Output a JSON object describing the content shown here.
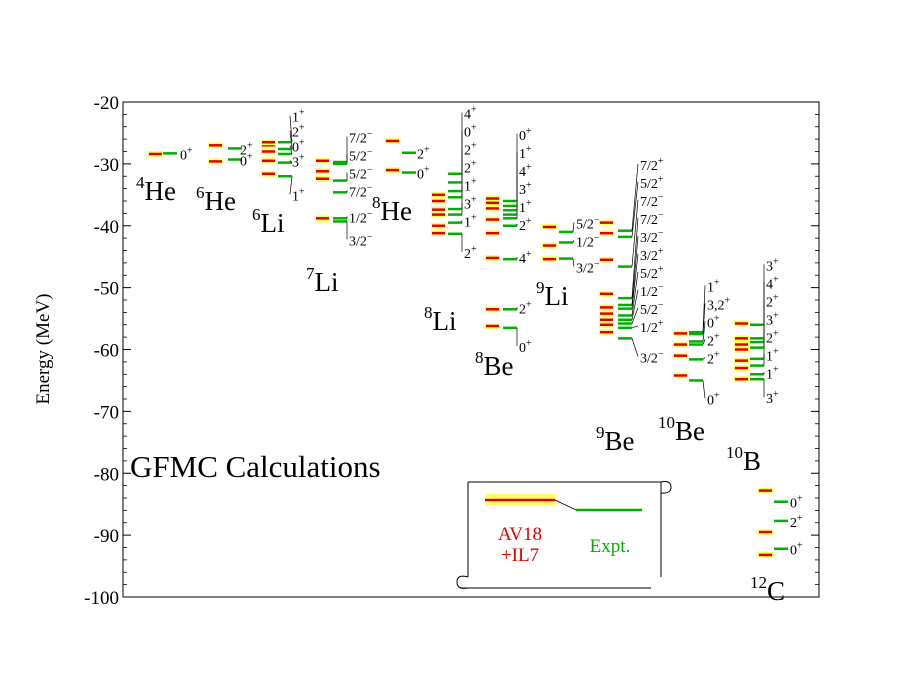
{
  "chart_data": {
    "type": "level-scheme",
    "title": "GFMC Calculations",
    "ylabel": "Energy (MeV)",
    "ylim": [
      -100,
      -20
    ],
    "ytick_step": 10,
    "yticks": [
      {
        "value": -20,
        "label": "-20"
      },
      {
        "value": -30,
        "label": "-30"
      },
      {
        "value": -40,
        "label": "-40"
      },
      {
        "value": -50,
        "label": "-50"
      },
      {
        "value": -60,
        "label": "-60"
      },
      {
        "value": -70,
        "label": "-70"
      },
      {
        "value": -80,
        "label": "-80"
      },
      {
        "value": -90,
        "label": "-90"
      },
      {
        "value": -100,
        "label": "-100"
      }
    ],
    "colors": {
      "calc": "#e00000",
      "expt": "#00b000",
      "error": "#ffff66",
      "expt_error": "#aaeeaa",
      "magenta": "#ee00ee"
    },
    "legend": {
      "calc_line1": "AV18",
      "calc_line2": "+IL7",
      "expt": "Expt."
    },
    "nuclei": [
      {
        "mass": "4",
        "element": "He",
        "calc": [
          -28.4
        ],
        "expt": [
          {
            "E": -28.3,
            "label": "0",
            "parity": "+"
          }
        ]
      },
      {
        "mass": "6",
        "element": "He",
        "calc": [
          -29.6,
          -27.0
        ],
        "expt": [
          {
            "E": -29.3,
            "label": "0",
            "parity": "+"
          },
          {
            "E": -27.5,
            "label": "2",
            "parity": "+"
          }
        ]
      },
      {
        "mass": "6",
        "element": "Li",
        "calc": [
          -31.6,
          -29.5,
          -28.0,
          -27.0,
          -26.5
        ],
        "expt": [
          {
            "E": -32.0,
            "label": "1",
            "parity": "+"
          },
          {
            "E": -29.8,
            "label": "3",
            "parity": "+"
          },
          {
            "E": -28.4,
            "label": "0",
            "parity": "+"
          },
          {
            "E": -27.6,
            "label": "2",
            "parity": "+"
          },
          {
            "E": -26.5,
            "label": "1",
            "parity": "+"
          }
        ]
      },
      {
        "mass": "7",
        "element": "Li",
        "calc": [
          -39.0,
          -38.8,
          -32.4,
          -31.2,
          -29.5
        ],
        "expt": [
          {
            "E": -39.3,
            "label": "3/2",
            "parity": "−"
          },
          {
            "E": -38.8,
            "label": "1/2",
            "parity": "−"
          },
          {
            "E": -34.6,
            "label": "7/2",
            "parity": "−"
          },
          {
            "E": -32.7,
            "label": "5/2",
            "parity": "−"
          },
          {
            "E": -30.0,
            "label": "5/2",
            "parity": "−"
          },
          {
            "E": -29.7,
            "label": "7/2",
            "parity": "−"
          }
        ]
      },
      {
        "mass": "8",
        "element": "He",
        "calc": [
          -31.0,
          -26.3
        ],
        "expt": [
          {
            "E": -31.4,
            "label": "0",
            "parity": "+"
          },
          {
            "E": -28.2,
            "label": "2",
            "parity": "+"
          }
        ]
      },
      {
        "mass": "8",
        "element": "Li",
        "calc": [
          -41.2,
          -40.0,
          -38.2,
          -37.4,
          -36.0,
          -35.0
        ],
        "expt": [
          {
            "E": -41.3,
            "label": "2",
            "parity": "+"
          },
          {
            "E": -39.5,
            "label": "1",
            "parity": "+"
          },
          {
            "E": -38.2,
            "label": "3",
            "parity": "+"
          },
          {
            "E": -37.3,
            "label": "1",
            "parity": "+"
          },
          {
            "E": -35.4,
            "label": "2",
            "parity": "+"
          },
          {
            "E": -34.4,
            "label": "2",
            "parity": "+"
          },
          {
            "E": -33.0,
            "label": "0",
            "parity": "+"
          },
          {
            "E": -31.6,
            "label": "4",
            "parity": "+"
          }
        ]
      },
      {
        "mass": "8",
        "element": "Be",
        "calc": [
          -56.2,
          -53.5,
          -45.2,
          -41.2,
          -39.0,
          -37.2,
          -36.3,
          -35.6
        ],
        "expt": [
          {
            "E": -56.5,
            "label": "0",
            "parity": "+"
          },
          {
            "E": -53.5,
            "label": "2",
            "parity": "+"
          },
          {
            "E": -45.4,
            "label": "4",
            "parity": "+"
          },
          {
            "E": -40.0,
            "label": "2",
            "parity": "+"
          },
          {
            "E": -38.8,
            "label": "1",
            "parity": "+"
          },
          {
            "E": -38.2,
            "label": "3",
            "parity": "+"
          },
          {
            "E": -37.5,
            "label": "4",
            "parity": "+"
          },
          {
            "E": -36.8,
            "label": "1",
            "parity": "+"
          },
          {
            "E": -36.0,
            "label": "0",
            "parity": "+"
          }
        ]
      },
      {
        "mass": "9",
        "element": "Li",
        "calc": [
          -45.4,
          -43.2,
          -40.2
        ],
        "expt": [
          {
            "E": -45.3,
            "label": "3/2",
            "parity": "−"
          },
          {
            "E": -42.7,
            "label": "1/2",
            "parity": "−"
          },
          {
            "E": -41.0,
            "label": "5/2",
            "parity": "−"
          }
        ]
      },
      {
        "mass": "9",
        "element": "Be",
        "calc": [
          -57.2,
          -56.0,
          -55.2,
          -54.2,
          -53.2,
          -51.0,
          -45.5,
          -41.2,
          -39.5
        ],
        "expt": [
          {
            "E": -58.2,
            "label": "3/2",
            "parity": "−"
          },
          {
            "E": -56.5,
            "label": "1/2",
            "parity": "+"
          },
          {
            "E": -55.8,
            "label": "5/2",
            "parity": "−"
          },
          {
            "E": -55.2,
            "label": "1/2",
            "parity": "−"
          },
          {
            "E": -54.5,
            "label": "5/2",
            "parity": "+"
          },
          {
            "E": -53.4,
            "label": "3/2",
            "parity": "+"
          },
          {
            "E": -52.8,
            "label": "3/2",
            "parity": "−"
          },
          {
            "E": -51.7,
            "label": "7/2",
            "parity": "−"
          },
          {
            "E": -46.6,
            "label": "7/2",
            "parity": "−"
          },
          {
            "E": -41.8,
            "label": "5/2",
            "parity": "+"
          },
          {
            "E": -40.8,
            "label": "7/2",
            "parity": "+"
          }
        ]
      },
      {
        "mass": "10",
        "element": "Be",
        "calc": [
          -64.2,
          -61.0,
          -59.2,
          -57.4
        ],
        "expt": [
          {
            "E": -65.0,
            "label": "0",
            "parity": "+"
          },
          {
            "E": -61.6,
            "label": "2",
            "parity": "+"
          },
          {
            "E": -59.2,
            "label": "2",
            "parity": "+"
          },
          {
            "E": -58.7,
            "label": "0",
            "parity": "+"
          },
          {
            "E": -57.5,
            "label": "3,2",
            "parity": "+"
          },
          {
            "E": -57.2,
            "label": "1",
            "parity": "+"
          }
        ]
      },
      {
        "mass": "10",
        "element": "B",
        "calc": [
          -64.8,
          -63.0,
          -61.8,
          -60.0,
          -59.2,
          -58.2,
          -55.8
        ],
        "expt": [
          {
            "E": -64.8,
            "label": "3",
            "parity": "+"
          },
          {
            "E": -64.0,
            "label": "1",
            "parity": "+"
          },
          {
            "E": -62.6,
            "label": "1",
            "parity": "+"
          },
          {
            "E": -61.5,
            "label": "2",
            "parity": "+"
          },
          {
            "E": -59.7,
            "label": "3",
            "parity": "+"
          },
          {
            "E": -58.8,
            "label": "2",
            "parity": "+"
          },
          {
            "E": -58.2,
            "label": "4",
            "parity": "+"
          },
          {
            "E": -56.0,
            "label": "3",
            "parity": "+"
          }
        ]
      },
      {
        "mass": "12",
        "element": "C",
        "calc": [
          -93.2,
          -89.5,
          -82.8
        ],
        "expt": [
          {
            "E": -92.2,
            "label": "0",
            "parity": "+"
          },
          {
            "E": -87.7,
            "label": "2",
            "parity": "+"
          },
          {
            "E": -84.6,
            "label": "0",
            "parity": "+"
          }
        ]
      }
    ]
  }
}
